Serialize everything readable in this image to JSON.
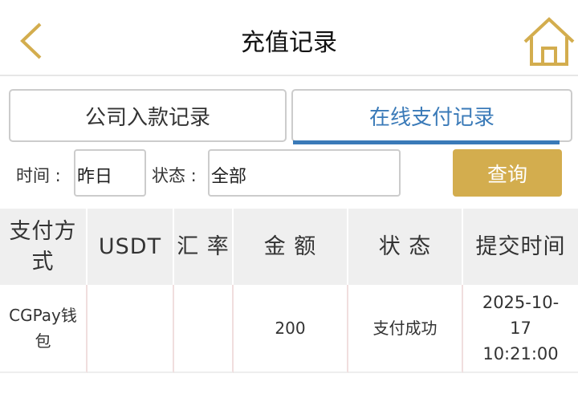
{
  "header": {
    "title": "充值记录",
    "back_icon": "chevron-left-icon",
    "home_icon": "home-icon",
    "accent": "#d3ad4e"
  },
  "tabs": [
    {
      "label": "公司入款记录",
      "active": false
    },
    {
      "label": "在线支付记录",
      "active": true
    }
  ],
  "filters": {
    "time_label": "时间 :",
    "time_value": "昨日",
    "status_label": "状态 :",
    "status_value": "全部",
    "query_label": "查询"
  },
  "table": {
    "headers": [
      "支付方式",
      "USDT",
      "汇 率",
      "金 额",
      "状 态",
      "提交时间"
    ],
    "rows": [
      {
        "method": "CGPay钱包",
        "usdt": "",
        "rate": "",
        "amount": "200",
        "status": "支付成功",
        "time": "2025-10-17 10:21:00"
      }
    ]
  }
}
